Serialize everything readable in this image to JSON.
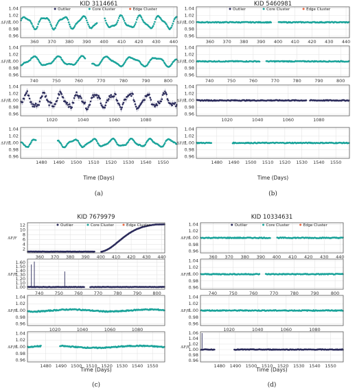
{
  "colors": {
    "outlier": "#2a2a5a",
    "core": "#1aa39a",
    "edge": "#e8623c",
    "frame": "#555555",
    "grid": "#e4e4e4"
  },
  "legend_labels": [
    "Outlier",
    "Core Cluster",
    "Edge Cluster"
  ],
  "ylabel": "ΔF/F",
  "xlabel": "Time (Days)",
  "chart_data": [
    {
      "id": "a",
      "type": "scatter",
      "title": "KID 3114661",
      "caption": "(a)",
      "panels": [
        {
          "xlim": [
            352,
            442
          ],
          "xticks": [
            360,
            370,
            380,
            390,
            400,
            410,
            420,
            430,
            440
          ],
          "ylim": [
            0.955,
            1.045
          ],
          "yticks": [
            0.96,
            0.98,
            1.0,
            1.02,
            1.04
          ],
          "signal": "osc",
          "amp": 0.016,
          "period": 11,
          "color": "core",
          "gaps": [
            [
              396,
              400
            ]
          ]
        },
        {
          "xlim": [
            734,
            804
          ],
          "xticks": [
            740,
            750,
            760,
            770,
            780,
            790,
            800
          ],
          "ylim": [
            0.955,
            1.045
          ],
          "yticks": [
            0.96,
            0.98,
            1.0,
            1.02,
            1.04
          ],
          "signal": "osc",
          "amp": 0.012,
          "period": 11,
          "color": "core",
          "gaps": [
            [
              763,
              766
            ]
          ]
        },
        {
          "xlim": [
            1000,
            1100
          ],
          "xticks": [
            1020,
            1040,
            1060,
            1080
          ],
          "ylim": [
            0.955,
            1.045
          ],
          "yticks": [
            0.96,
            0.98,
            1.0,
            1.02,
            1.04
          ],
          "signal": "osc",
          "amp": 0.018,
          "period": 11,
          "color": "outlier",
          "noise": 0.006,
          "gaps": []
        },
        {
          "xlim": [
            1468,
            1558
          ],
          "xticks": [
            1480,
            1490,
            1500,
            1510,
            1520,
            1530,
            1540,
            1550
          ],
          "ylim": [
            0.955,
            1.045
          ],
          "yticks": [
            0.96,
            0.98,
            1.0,
            1.02,
            1.04
          ],
          "signal": "osc",
          "amp": 0.01,
          "period": 11,
          "color": "core",
          "gaps": [
            [
              1477,
              1489
            ]
          ]
        }
      ]
    },
    {
      "id": "b",
      "type": "scatter",
      "title": "KID 5460981",
      "caption": "(b)",
      "panels": [
        {
          "xlim": [
            352,
            442
          ],
          "xticks": [
            360,
            370,
            380,
            390,
            400,
            410,
            420,
            430,
            440
          ],
          "ylim": [
            0.955,
            1.045
          ],
          "yticks": [
            0.96,
            0.98,
            1.0,
            1.02,
            1.04
          ],
          "signal": "flat",
          "color": "core",
          "gaps": [
            [
              396,
              400
            ]
          ]
        },
        {
          "xlim": [
            734,
            804
          ],
          "xticks": [
            740,
            750,
            760,
            770,
            780,
            790,
            800
          ],
          "ylim": [
            0.955,
            1.045
          ],
          "yticks": [
            0.96,
            0.98,
            1.0,
            1.02,
            1.04
          ],
          "signal": "flat",
          "color": "core",
          "gaps": [
            [
              763,
              766
            ]
          ]
        },
        {
          "xlim": [
            1000,
            1100
          ],
          "xticks": [
            1020,
            1040,
            1060,
            1080
          ],
          "ylim": [
            0.955,
            1.045
          ],
          "yticks": [
            0.96,
            0.98,
            1.0,
            1.02,
            1.04
          ],
          "signal": "flat",
          "color": "outlier",
          "gaps": [
            [
              1072,
              1074
            ]
          ]
        },
        {
          "xlim": [
            1468,
            1558
          ],
          "xticks": [
            1480,
            1490,
            1500,
            1510,
            1520,
            1530,
            1540,
            1550
          ],
          "ylim": [
            0.955,
            1.045
          ],
          "yticks": [
            0.96,
            0.98,
            1.0,
            1.02,
            1.04
          ],
          "signal": "flat",
          "color": "core",
          "gaps": [
            [
              1477,
              1489
            ]
          ]
        }
      ]
    },
    {
      "id": "c",
      "type": "scatter",
      "title": "KID 7679979",
      "caption": "(c)",
      "panels": [
        {
          "xlim": [
            352,
            442
          ],
          "xticks": [
            360,
            370,
            380,
            390,
            400,
            410,
            420,
            430,
            440
          ],
          "ylim": [
            0.5,
            13.0
          ],
          "yticks": [
            2,
            4,
            6,
            8,
            10,
            12
          ],
          "signal": "rise",
          "color": "outlier",
          "gaps": [
            [
              396,
              400
            ]
          ]
        },
        {
          "xlim": [
            734,
            804
          ],
          "xticks": [
            740,
            750,
            760,
            770,
            780,
            790,
            800
          ],
          "ylim": [
            0.95,
            1.68
          ],
          "yticks": [
            1.0,
            1.1,
            1.2,
            1.3,
            1.4,
            1.5,
            1.6
          ],
          "signal": "spikes",
          "spikes": [
            [
              736,
              1.55
            ],
            [
              737.5,
              1.62
            ],
            [
              753,
              1.38
            ]
          ],
          "color": "outlier",
          "gaps": [
            [
              763,
              766
            ]
          ]
        },
        {
          "xlim": [
            1000,
            1100
          ],
          "xticks": [
            1020,
            1040,
            1060,
            1080
          ],
          "ylim": [
            0.955,
            1.045
          ],
          "yticks": [
            0.96,
            0.98,
            1.0,
            1.02,
            1.04
          ],
          "signal": "wobble",
          "color": "core",
          "gaps": []
        },
        {
          "xlim": [
            1468,
            1558
          ],
          "xticks": [
            1480,
            1490,
            1500,
            1510,
            1520,
            1530,
            1540,
            1550
          ],
          "ylim": [
            0.955,
            1.045
          ],
          "yticks": [
            0.96,
            0.98,
            1.0,
            1.02,
            1.04
          ],
          "signal": "wobble",
          "color": "core",
          "gaps": [
            [
              1477,
              1489
            ]
          ]
        }
      ]
    },
    {
      "id": "d",
      "type": "scatter",
      "title": "KID 10334631",
      "caption": "(d)",
      "panels": [
        {
          "xlim": [
            352,
            442
          ],
          "xticks": [
            360,
            370,
            380,
            390,
            400,
            410,
            420,
            430,
            440
          ],
          "ylim": [
            0.955,
            1.045
          ],
          "yticks": [
            0.96,
            0.98,
            1.0,
            1.02,
            1.04
          ],
          "signal": "flat",
          "color": "core",
          "gaps": [
            [
              396,
              400
            ]
          ]
        },
        {
          "xlim": [
            734,
            804
          ],
          "xticks": [
            740,
            750,
            760,
            770,
            780,
            790,
            800
          ],
          "ylim": [
            0.955,
            1.045
          ],
          "yticks": [
            0.96,
            0.98,
            1.0,
            1.02,
            1.04
          ],
          "signal": "flat",
          "color": "core",
          "gaps": [
            [
              763,
              766
            ]
          ]
        },
        {
          "xlim": [
            1000,
            1100
          ],
          "xticks": [
            1020,
            1040,
            1060,
            1080
          ],
          "ylim": [
            0.955,
            1.045
          ],
          "yticks": [
            0.96,
            0.98,
            1.0,
            1.02,
            1.04
          ],
          "signal": "flat",
          "color": "core",
          "gaps": []
        },
        {
          "xlim": [
            1468,
            1558
          ],
          "xticks": [
            1480,
            1490,
            1500,
            1510,
            1520,
            1530,
            1540,
            1550
          ],
          "ylim": [
            0.955,
            1.065
          ],
          "yticks": [
            0.96,
            0.98,
            1.0,
            1.02,
            1.04,
            1.06
          ],
          "signal": "spikeflat",
          "spikes": [
            [
              1469,
              1.06
            ]
          ],
          "color": "outlier",
          "gaps": [
            [
              1477,
              1489
            ]
          ]
        }
      ]
    }
  ]
}
